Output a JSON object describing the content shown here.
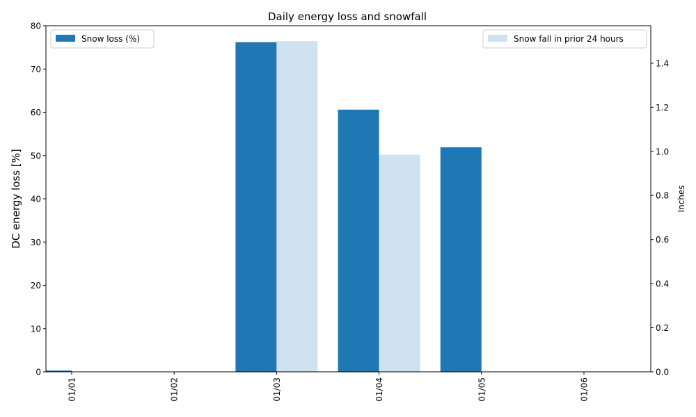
{
  "chart_data": {
    "type": "bar",
    "title": "Daily energy loss and snowfall",
    "categories": [
      "01/01",
      "01/02",
      "01/03",
      "01/04",
      "01/05",
      "01/06"
    ],
    "series": [
      {
        "name": "Snow loss (%)",
        "axis": "left",
        "color": "#1f77b4",
        "values": [
          0.3,
          0,
          76.2,
          60.6,
          51.9,
          0
        ]
      },
      {
        "name": "Snow fall in prior 24 hours",
        "axis": "right",
        "color": "#cfe2ef",
        "values": [
          0,
          0,
          1.5,
          0.985,
          0,
          0
        ]
      }
    ],
    "ylabel": "DC energy loss [%]",
    "ylim": [
      0,
      80
    ],
    "yticks": [
      "0",
      "10",
      "20",
      "30",
      "40",
      "50",
      "60",
      "70",
      "80"
    ],
    "y2label": "Inches",
    "y2lim": [
      0,
      1.57
    ],
    "y2ticks": [
      "0.0",
      "0.2",
      "0.4",
      "0.6",
      "0.8",
      "1.0",
      "1.2",
      "1.4"
    ],
    "legend_left": "top-left",
    "legend_right": "top-right",
    "grid": false
  }
}
